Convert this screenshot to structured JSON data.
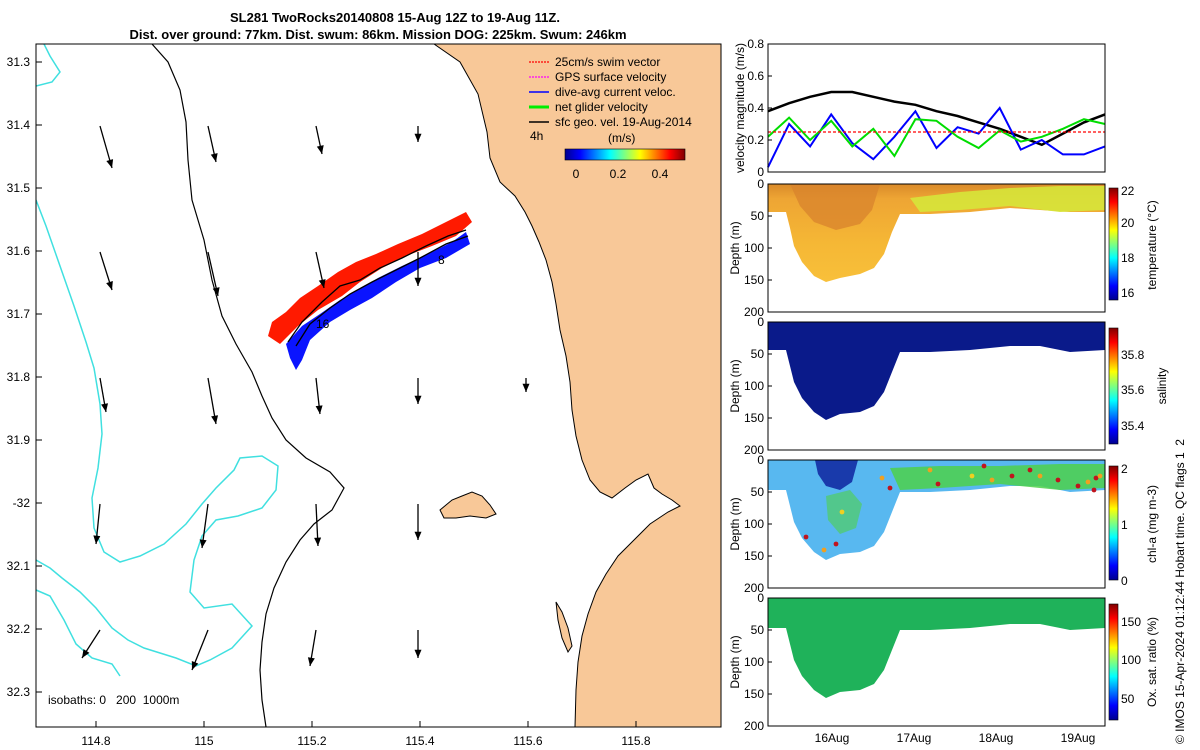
{
  "title": {
    "line1": "SL281 TwoRocks20140808 15-Aug 12Z to 19-Aug 11Z.",
    "line2": "Dist. over ground: 77km. Dist. swum: 86km. Mission DOG: 225km. Swum: 246km"
  },
  "map": {
    "lon_ticks": [
      "114.8",
      "115",
      "115.2",
      "115.4",
      "115.6",
      "115.8"
    ],
    "lat_ticks": [
      "31.3",
      "31.4",
      "31.5",
      "31.6",
      "31.7",
      "31.8",
      "31.9",
      "-32",
      "32.1",
      "32.2",
      "32.3"
    ],
    "legend": [
      {
        "label": "25cm/s swim vector",
        "color": "#ff0000"
      },
      {
        "label": "GPS surface velocity",
        "color": "#ff00ff"
      },
      {
        "label": "dive-avg current veloc.",
        "color": "#0000ff"
      },
      {
        "label": "net glider velocity",
        "color": "#00ee00"
      },
      {
        "label": "sfc geo. vel. 19-Aug-2014",
        "color": "#000000"
      }
    ],
    "four_h_label": "4h",
    "colorbar_unit": "(m/s)",
    "colorbar_ticks": [
      "0",
      "0.2",
      "0.4"
    ],
    "track_labels": [
      "16",
      "8"
    ],
    "isobaths_label": "isobaths: 0   200  1000m",
    "land_color": "#f8c898",
    "isobath_color": "#40e0e0"
  },
  "chart_data": [
    {
      "type": "line",
      "ylabel": "velocity magnitude (m/s)",
      "ylim": [
        0,
        0.8
      ],
      "y_ticks": [
        "0",
        "0.2",
        "0.4",
        "0.6",
        "0.8"
      ],
      "x": [
        "15-Aug 12Z",
        "15-Aug 18Z",
        "16-Aug 00Z",
        "16-Aug 06Z",
        "16-Aug 12Z",
        "16-Aug 18Z",
        "17-Aug 00Z",
        "17-Aug 06Z",
        "17-Aug 12Z",
        "17-Aug 18Z",
        "18-Aug 00Z",
        "18-Aug 06Z",
        "18-Aug 12Z",
        "18-Aug 18Z",
        "19-Aug 00Z",
        "19-Aug 06Z",
        "19-Aug 11Z"
      ],
      "series": [
        {
          "color": "#000000",
          "values": [
            0.38,
            0.43,
            0.47,
            0.5,
            0.5,
            0.47,
            0.44,
            0.42,
            0.38,
            0.35,
            0.31,
            0.27,
            0.22,
            0.17,
            0.24,
            0.31,
            0.36
          ]
        },
        {
          "color": "#0000ff",
          "values": [
            0.03,
            0.3,
            0.16,
            0.36,
            0.18,
            0.08,
            0.22,
            0.38,
            0.15,
            0.28,
            0.24,
            0.4,
            0.14,
            0.2,
            0.11,
            0.11,
            0.16
          ]
        },
        {
          "color": "#00dd00",
          "values": [
            0.22,
            0.34,
            0.2,
            0.32,
            0.16,
            0.27,
            0.1,
            0.33,
            0.32,
            0.22,
            0.15,
            0.26,
            0.19,
            0.22,
            0.27,
            0.33,
            0.3
          ]
        },
        {
          "color": "#ff0000",
          "values": [
            0.25,
            0.25,
            0.25,
            0.25,
            0.25,
            0.25,
            0.25,
            0.25,
            0.25,
            0.25,
            0.25,
            0.25,
            0.25,
            0.25,
            0.25,
            0.25,
            0.25
          ]
        }
      ]
    },
    {
      "type": "heatmap",
      "ylabel": "Depth (m)",
      "ylim": [
        200,
        0
      ],
      "y_ticks": [
        "0",
        "50",
        "100",
        "150",
        "200"
      ],
      "colorbar_label": "temperature (°C)",
      "colorbar_ticks": [
        "22",
        "20",
        "18",
        "16"
      ],
      "clim": [
        15,
        22
      ],
      "value_at_surface": 20.5,
      "value_at_depth": 21.5
    },
    {
      "type": "heatmap",
      "ylabel": "Depth (m)",
      "ylim": [
        200,
        0
      ],
      "y_ticks": [
        "0",
        "50",
        "100",
        "150",
        "200"
      ],
      "colorbar_label": "salinity",
      "colorbar_ticks": [
        "35.8",
        "35.6",
        "35.4"
      ],
      "clim": [
        35.3,
        35.95
      ],
      "value": 35.3
    },
    {
      "type": "heatmap",
      "ylabel": "Depth (m)",
      "ylim": [
        200,
        0
      ],
      "y_ticks": [
        "0",
        "50",
        "100",
        "150",
        "200"
      ],
      "colorbar_label": "chl-a (mg m-3)",
      "colorbar_ticks": [
        "2",
        "1",
        "0"
      ],
      "clim": [
        0,
        2
      ],
      "value_range": [
        0.4,
        1.2
      ]
    },
    {
      "type": "heatmap",
      "ylabel": "Depth (m)",
      "ylim": [
        200,
        0
      ],
      "y_ticks": [
        "0",
        "50",
        "100",
        "150",
        "200"
      ],
      "colorbar_label": "Ox. sat. ratio (%)",
      "colorbar_ticks": [
        "150",
        "100",
        "50"
      ],
      "clim": [
        25,
        175
      ],
      "value": 100
    }
  ],
  "time_axis": {
    "ticks": [
      "16Aug",
      "17Aug",
      "18Aug",
      "19Aug"
    ]
  },
  "footer": "© IMOS 15-Apr-2024 01:12:44 Hobart time. QC flags 1  2"
}
